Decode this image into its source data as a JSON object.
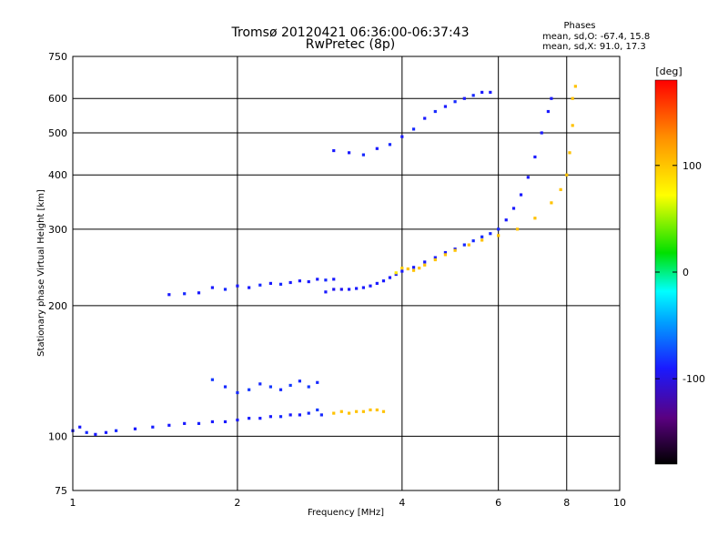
{
  "title": "Tromsø 20120421 06:36:00-06:37:43",
  "subtitle": "RwPretec (8p)",
  "phases_block": {
    "heading": "Phases",
    "line_o": "mean, sd,O: -67.4, 15.8",
    "line_x": "mean, sd,X:  91.0, 17.3"
  },
  "colorbar": {
    "unit_label": "[deg]",
    "ticks": [
      "100",
      "0",
      "-100"
    ],
    "tick_values": [
      100,
      0,
      -100
    ],
    "range": [
      -180,
      180
    ]
  },
  "chart_data": {
    "type": "scatter",
    "title": "Tromsø 20120421 06:36:00-06:37:43",
    "subtitle": "RwPretec (8p)",
    "xlabel": "Frequency [MHz]",
    "ylabel": "Stationary phase Virtual Height [km]",
    "x_scale": "log",
    "y_scale": "log",
    "xlim": [
      1,
      10
    ],
    "ylim": [
      75,
      750
    ],
    "x_ticks": [
      1,
      2,
      4,
      6,
      8,
      10
    ],
    "x_tick_labels": [
      "1",
      "2",
      "4",
      "6",
      "8",
      "10"
    ],
    "y_ticks": [
      75,
      100,
      200,
      300,
      400,
      500,
      600,
      750
    ],
    "y_tick_labels": [
      "75",
      "100",
      "200",
      "300",
      "400",
      "500",
      "600",
      "750"
    ],
    "grid": true,
    "color_by": "phase [deg]",
    "series": [
      {
        "values": [
          [
            1.0,
            103,
            -100
          ],
          [
            1.03,
            105,
            -100
          ],
          [
            1.06,
            102,
            -95
          ],
          [
            1.1,
            101,
            -100
          ],
          [
            1.15,
            102,
            -100
          ],
          [
            1.2,
            103,
            -95
          ],
          [
            1.3,
            104,
            -100
          ],
          [
            1.4,
            105,
            -98
          ],
          [
            1.5,
            106,
            -100
          ],
          [
            1.6,
            107,
            -100
          ],
          [
            1.7,
            107,
            -98
          ],
          [
            1.8,
            108,
            -100
          ],
          [
            1.9,
            108,
            -100
          ],
          [
            2.0,
            109,
            -100
          ],
          [
            2.1,
            110,
            -98
          ],
          [
            2.2,
            110,
            -100
          ],
          [
            2.3,
            111,
            -100
          ],
          [
            2.4,
            111,
            -95
          ],
          [
            2.5,
            112,
            -100
          ],
          [
            2.6,
            112,
            -100
          ],
          [
            2.7,
            113,
            -95
          ],
          [
            2.8,
            115,
            -90
          ],
          [
            2.85,
            112,
            -95
          ]
        ]
      },
      {
        "values": [
          [
            1.5,
            212,
            -100
          ],
          [
            1.6,
            213,
            -95
          ],
          [
            1.7,
            214,
            -100
          ],
          [
            1.8,
            220,
            -100
          ],
          [
            1.9,
            218,
            -95
          ],
          [
            2.0,
            222,
            -100
          ],
          [
            2.1,
            220,
            -100
          ],
          [
            2.2,
            223,
            -95
          ],
          [
            2.3,
            225,
            -100
          ],
          [
            2.4,
            224,
            -95
          ],
          [
            2.5,
            226,
            -100
          ],
          [
            2.6,
            228,
            -100
          ],
          [
            2.7,
            227,
            -100
          ],
          [
            2.8,
            230,
            -100
          ],
          [
            2.9,
            229,
            -95
          ],
          [
            3.0,
            230,
            -100
          ]
        ]
      },
      {
        "values": [
          [
            1.8,
            135,
            -90
          ],
          [
            1.9,
            130,
            -95
          ],
          [
            2.0,
            126,
            -95
          ],
          [
            2.1,
            128,
            -90
          ],
          [
            2.2,
            132,
            -95
          ],
          [
            2.3,
            130,
            -90
          ],
          [
            2.4,
            128,
            -95
          ],
          [
            2.5,
            131,
            -90
          ],
          [
            2.6,
            134,
            -95
          ],
          [
            2.7,
            130,
            -90
          ],
          [
            2.8,
            133,
            -95
          ]
        ]
      },
      {
        "values": [
          [
            2.9,
            215,
            -100
          ],
          [
            3.0,
            218,
            -105
          ],
          [
            3.1,
            218,
            -105
          ],
          [
            3.2,
            218,
            -100
          ],
          [
            3.3,
            219,
            -100
          ],
          [
            3.4,
            220,
            -100
          ],
          [
            3.5,
            222,
            -100
          ],
          [
            3.6,
            225,
            -100
          ],
          [
            3.7,
            228,
            -100
          ],
          [
            3.8,
            232,
            -100
          ],
          [
            3.9,
            236,
            -100
          ],
          [
            4.0,
            240,
            -100
          ],
          [
            4.2,
            245,
            -100
          ],
          [
            4.4,
            252,
            -100
          ],
          [
            4.6,
            258,
            -100
          ],
          [
            4.8,
            265,
            -100
          ],
          [
            5.0,
            270,
            -100
          ],
          [
            5.2,
            276,
            -95
          ],
          [
            5.4,
            282,
            -95
          ],
          [
            5.6,
            288,
            -95
          ],
          [
            5.8,
            293,
            -95
          ],
          [
            6.0,
            300,
            -95
          ],
          [
            6.2,
            315,
            -100
          ],
          [
            6.4,
            335,
            -100
          ],
          [
            6.6,
            360,
            -100
          ],
          [
            6.8,
            395,
            -100
          ],
          [
            7.0,
            440,
            -100
          ],
          [
            7.2,
            500,
            -100
          ],
          [
            7.4,
            560,
            -100
          ],
          [
            7.5,
            600,
            -100
          ]
        ]
      },
      {
        "values": [
          [
            3.9,
            238,
            80
          ],
          [
            4.0,
            244,
            95
          ],
          [
            4.1,
            243,
            100
          ],
          [
            4.2,
            241,
            100
          ],
          [
            4.3,
            244,
            100
          ],
          [
            4.4,
            248,
            100
          ],
          [
            4.6,
            255,
            100
          ],
          [
            4.8,
            262,
            100
          ],
          [
            5.0,
            268,
            100
          ],
          [
            5.3,
            276,
            100
          ],
          [
            5.6,
            283,
            100
          ],
          [
            6.0,
            290,
            100
          ],
          [
            6.5,
            300,
            100
          ],
          [
            7.0,
            318,
            100
          ],
          [
            7.5,
            345,
            100
          ],
          [
            7.8,
            370,
            100
          ],
          [
            8.0,
            400,
            100
          ],
          [
            8.1,
            450,
            100
          ],
          [
            8.2,
            520,
            100
          ],
          [
            8.2,
            600,
            100
          ],
          [
            8.3,
            640,
            100
          ]
        ]
      },
      {
        "values": [
          [
            3.0,
            113,
            100
          ],
          [
            3.1,
            114,
            100
          ],
          [
            3.2,
            113,
            100
          ],
          [
            3.3,
            114,
            100
          ],
          [
            3.4,
            114,
            100
          ],
          [
            3.5,
            115,
            100
          ],
          [
            3.6,
            115,
            100
          ],
          [
            3.7,
            114,
            100
          ]
        ]
      },
      {
        "values": [
          [
            3.0,
            455,
            -100
          ],
          [
            3.2,
            450,
            -100
          ],
          [
            3.4,
            445,
            -95
          ],
          [
            3.6,
            460,
            -100
          ],
          [
            3.8,
            470,
            -95
          ],
          [
            4.0,
            490,
            -100
          ],
          [
            4.2,
            510,
            -95
          ],
          [
            4.4,
            540,
            -100
          ],
          [
            4.6,
            560,
            -95
          ],
          [
            4.8,
            575,
            -100
          ],
          [
            5.0,
            590,
            -95
          ],
          [
            5.2,
            600,
            -100
          ],
          [
            5.4,
            610,
            -95
          ],
          [
            5.6,
            620,
            -100
          ],
          [
            5.8,
            620,
            -100
          ]
        ]
      }
    ]
  }
}
